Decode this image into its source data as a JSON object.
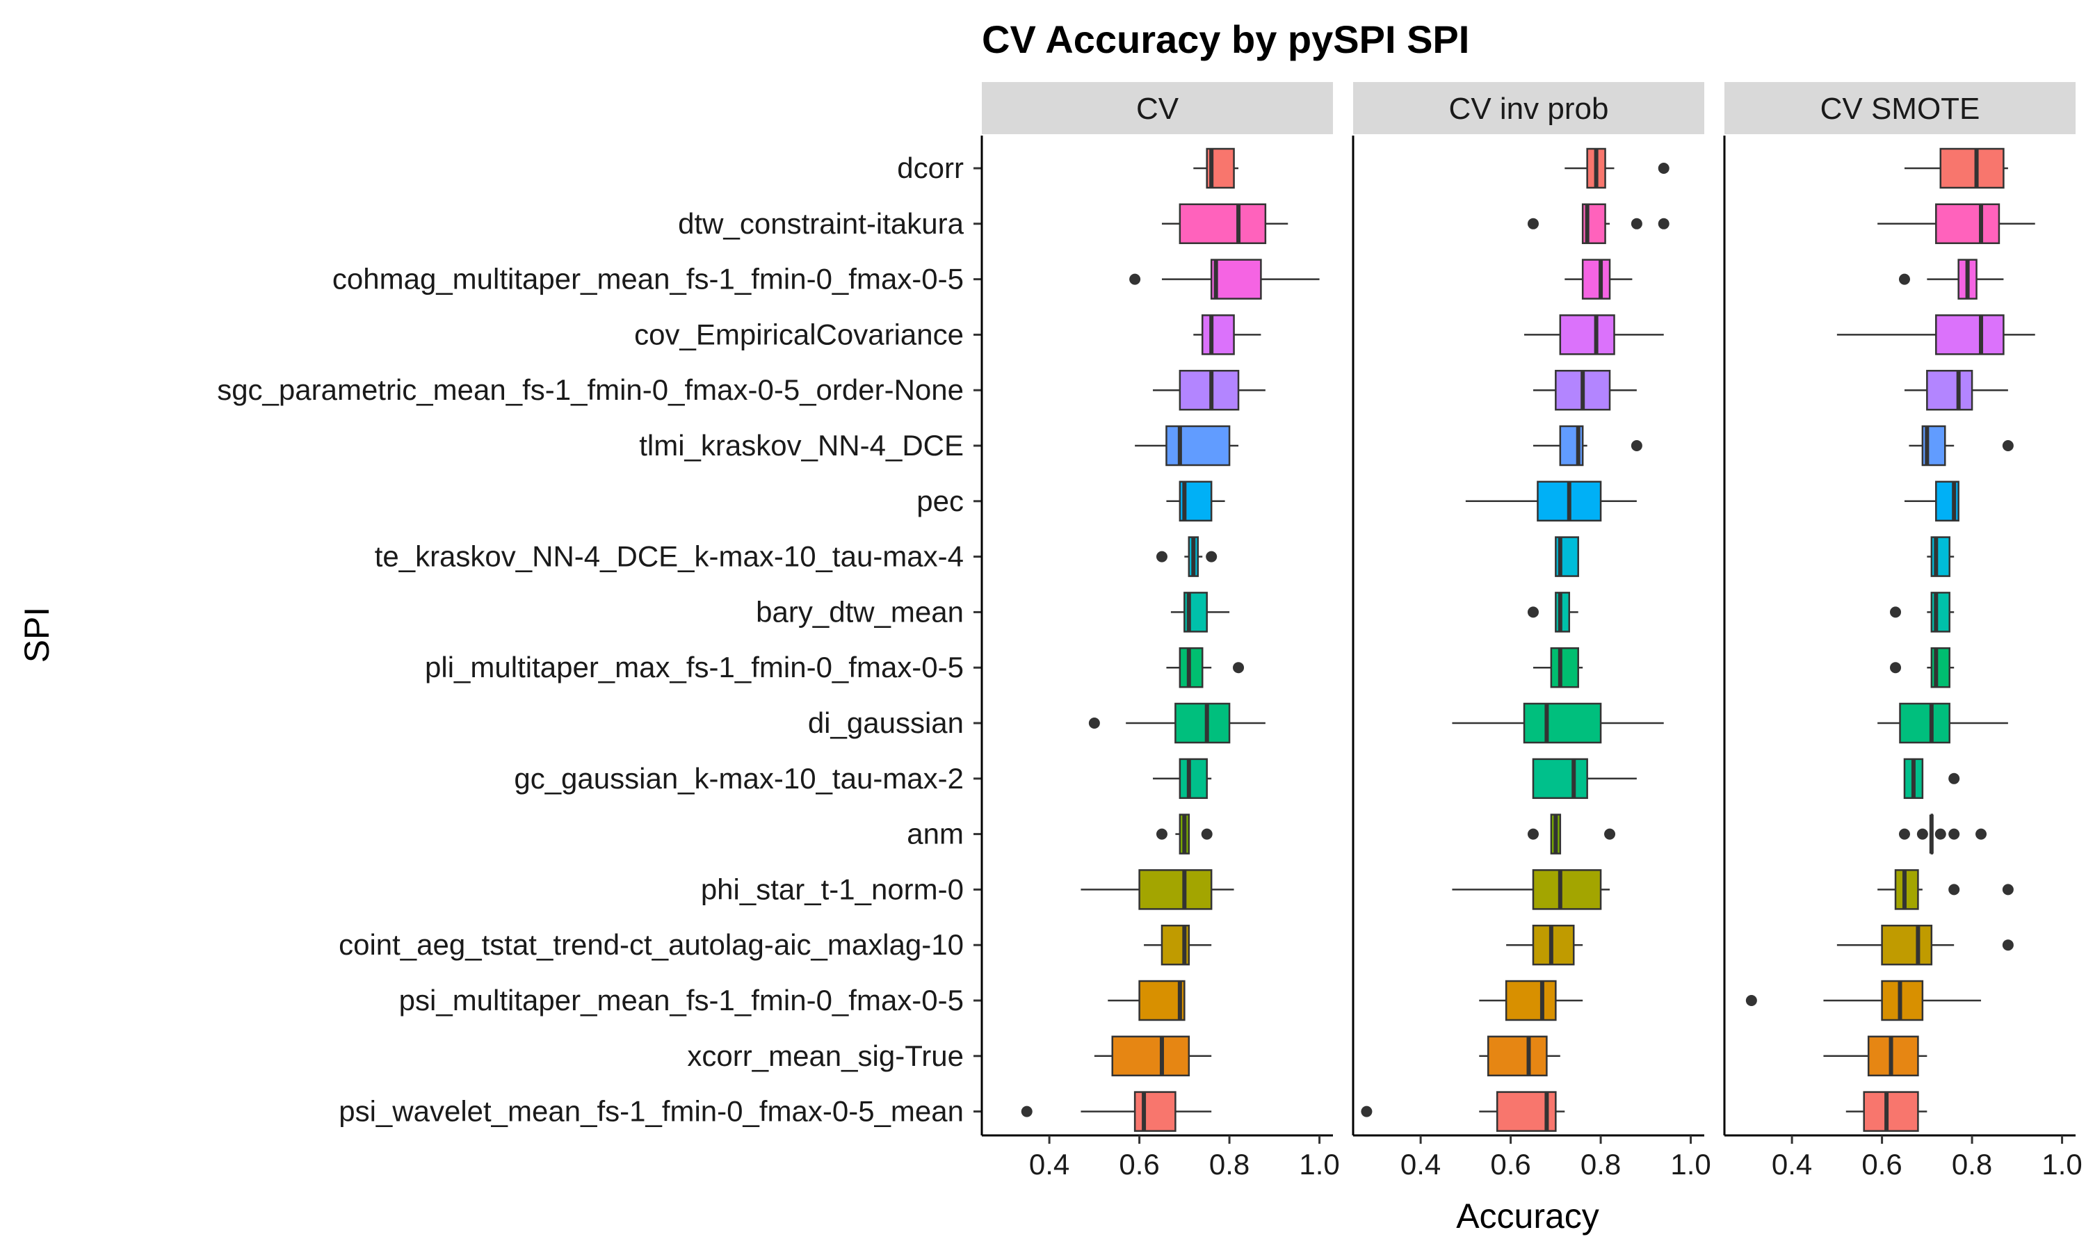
{
  "chart_data": {
    "type": "boxplot",
    "title": "CV Accuracy by pySPI SPI",
    "xlabel": "Accuracy",
    "ylabel": "SPI",
    "xlim": [
      0.25,
      1.03
    ],
    "x_ticks": [
      0.4,
      0.6,
      0.8,
      1.0
    ],
    "x_tick_labels": [
      "0.4",
      "0.6",
      "0.8",
      "1.0"
    ],
    "panels": [
      "CV",
      "CV inv prob",
      "CV SMOTE"
    ],
    "categories": [
      "dcorr",
      "dtw_constraint-itakura",
      "cohmag_multitaper_mean_fs-1_fmin-0_fmax-0-5",
      "cov_EmpiricalCovariance",
      "sgc_parametric_mean_fs-1_fmin-0_fmax-0-5_order-None",
      "tlmi_kraskov_NN-4_DCE",
      "pec",
      "te_kraskov_NN-4_DCE_k-max-10_tau-max-4",
      "bary_dtw_mean",
      "pli_multitaper_max_fs-1_fmin-0_fmax-0-5",
      "di_gaussian",
      "gc_gaussian_k-max-10_tau-max-2",
      "anm",
      "phi_star_t-1_norm-0",
      "coint_aeg_tstat_trend-ct_autolag-aic_maxlag-10",
      "psi_multitaper_mean_fs-1_fmin-0_fmax-0-5",
      "xcorr_mean_sig-True",
      "psi_wavelet_mean_fs-1_fmin-0_fmax-0-5_mean"
    ],
    "colors": [
      "#F8766D",
      "#FF62BC",
      "#F564E3",
      "#DB72FB",
      "#B385FF",
      "#619CFF",
      "#00B0F6",
      "#00BCD8",
      "#00C1AA",
      "#00BE70",
      "#00BF7D",
      "#00C08B",
      "#7CAE00",
      "#A3A500",
      "#C09B00",
      "#D89000",
      "#E68613",
      "#F8766D"
    ],
    "series": [
      {
        "name": "CV",
        "boxes": [
          {
            "whisker_low": 0.72,
            "q1": 0.75,
            "median": 0.76,
            "q3": 0.81,
            "whisker_high": 0.82,
            "outliers": []
          },
          {
            "whisker_low": 0.65,
            "q1": 0.69,
            "median": 0.82,
            "q3": 0.88,
            "whisker_high": 0.93,
            "outliers": []
          },
          {
            "whisker_low": 0.65,
            "q1": 0.76,
            "median": 0.77,
            "q3": 0.87,
            "whisker_high": 1.0,
            "outliers": [
              0.59
            ]
          },
          {
            "whisker_low": 0.72,
            "q1": 0.74,
            "median": 0.76,
            "q3": 0.81,
            "whisker_high": 0.87,
            "outliers": []
          },
          {
            "whisker_low": 0.63,
            "q1": 0.69,
            "median": 0.76,
            "q3": 0.82,
            "whisker_high": 0.88,
            "outliers": []
          },
          {
            "whisker_low": 0.59,
            "q1": 0.66,
            "median": 0.69,
            "q3": 0.8,
            "whisker_high": 0.82,
            "outliers": []
          },
          {
            "whisker_low": 0.66,
            "q1": 0.69,
            "median": 0.7,
            "q3": 0.76,
            "whisker_high": 0.79,
            "outliers": []
          },
          {
            "whisker_low": 0.7,
            "q1": 0.71,
            "median": 0.72,
            "q3": 0.73,
            "whisker_high": 0.74,
            "outliers": [
              0.65,
              0.76
            ]
          },
          {
            "whisker_low": 0.67,
            "q1": 0.7,
            "median": 0.71,
            "q3": 0.75,
            "whisker_high": 0.8,
            "outliers": []
          },
          {
            "whisker_low": 0.66,
            "q1": 0.69,
            "median": 0.71,
            "q3": 0.74,
            "whisker_high": 0.76,
            "outliers": [
              0.82
            ]
          },
          {
            "whisker_low": 0.57,
            "q1": 0.68,
            "median": 0.75,
            "q3": 0.8,
            "whisker_high": 0.88,
            "outliers": [
              0.5
            ]
          },
          {
            "whisker_low": 0.63,
            "q1": 0.69,
            "median": 0.71,
            "q3": 0.75,
            "whisker_high": 0.76,
            "outliers": []
          },
          {
            "whisker_low": 0.68,
            "q1": 0.69,
            "median": 0.7,
            "q3": 0.71,
            "whisker_high": 0.71,
            "outliers": [
              0.65,
              0.75
            ]
          },
          {
            "whisker_low": 0.47,
            "q1": 0.6,
            "median": 0.7,
            "q3": 0.76,
            "whisker_high": 0.81,
            "outliers": []
          },
          {
            "whisker_low": 0.61,
            "q1": 0.65,
            "median": 0.7,
            "q3": 0.71,
            "whisker_high": 0.76,
            "outliers": []
          },
          {
            "whisker_low": 0.53,
            "q1": 0.6,
            "median": 0.69,
            "q3": 0.7,
            "whisker_high": 0.7,
            "outliers": []
          },
          {
            "whisker_low": 0.5,
            "q1": 0.54,
            "median": 0.65,
            "q3": 0.71,
            "whisker_high": 0.76,
            "outliers": []
          },
          {
            "whisker_low": 0.47,
            "q1": 0.59,
            "median": 0.61,
            "q3": 0.68,
            "whisker_high": 0.76,
            "outliers": [
              0.35
            ]
          }
        ]
      },
      {
        "name": "CV inv prob",
        "boxes": [
          {
            "whisker_low": 0.72,
            "q1": 0.77,
            "median": 0.79,
            "q3": 0.81,
            "whisker_high": 0.83,
            "outliers": [
              0.94
            ]
          },
          {
            "whisker_low": 0.76,
            "q1": 0.76,
            "median": 0.77,
            "q3": 0.81,
            "whisker_high": 0.82,
            "outliers": [
              0.65,
              0.88,
              0.94
            ]
          },
          {
            "whisker_low": 0.72,
            "q1": 0.76,
            "median": 0.8,
            "q3": 0.82,
            "whisker_high": 0.87,
            "outliers": []
          },
          {
            "whisker_low": 0.63,
            "q1": 0.71,
            "median": 0.79,
            "q3": 0.83,
            "whisker_high": 0.94,
            "outliers": []
          },
          {
            "whisker_low": 0.65,
            "q1": 0.7,
            "median": 0.76,
            "q3": 0.82,
            "whisker_high": 0.88,
            "outliers": []
          },
          {
            "whisker_low": 0.65,
            "q1": 0.71,
            "median": 0.75,
            "q3": 0.76,
            "whisker_high": 0.77,
            "outliers": [
              0.88
            ]
          },
          {
            "whisker_low": 0.5,
            "q1": 0.66,
            "median": 0.73,
            "q3": 0.8,
            "whisker_high": 0.88,
            "outliers": []
          },
          {
            "whisker_low": 0.7,
            "q1": 0.7,
            "median": 0.71,
            "q3": 0.75,
            "whisker_high": 0.75,
            "outliers": []
          },
          {
            "whisker_low": 0.7,
            "q1": 0.7,
            "median": 0.71,
            "q3": 0.73,
            "whisker_high": 0.75,
            "outliers": [
              0.65
            ]
          },
          {
            "whisker_low": 0.65,
            "q1": 0.69,
            "median": 0.71,
            "q3": 0.75,
            "whisker_high": 0.76,
            "outliers": []
          },
          {
            "whisker_low": 0.47,
            "q1": 0.63,
            "median": 0.68,
            "q3": 0.8,
            "whisker_high": 0.94,
            "outliers": []
          },
          {
            "whisker_low": 0.65,
            "q1": 0.65,
            "median": 0.74,
            "q3": 0.77,
            "whisker_high": 0.88,
            "outliers": []
          },
          {
            "whisker_low": 0.69,
            "q1": 0.69,
            "median": 0.7,
            "q3": 0.71,
            "whisker_high": 0.71,
            "outliers": [
              0.65,
              0.82
            ]
          },
          {
            "whisker_low": 0.47,
            "q1": 0.65,
            "median": 0.71,
            "q3": 0.8,
            "whisker_high": 0.82,
            "outliers": []
          },
          {
            "whisker_low": 0.59,
            "q1": 0.65,
            "median": 0.69,
            "q3": 0.74,
            "whisker_high": 0.76,
            "outliers": []
          },
          {
            "whisker_low": 0.53,
            "q1": 0.59,
            "median": 0.67,
            "q3": 0.7,
            "whisker_high": 0.76,
            "outliers": []
          },
          {
            "whisker_low": 0.53,
            "q1": 0.55,
            "median": 0.64,
            "q3": 0.68,
            "whisker_high": 0.71,
            "outliers": []
          },
          {
            "whisker_low": 0.53,
            "q1": 0.57,
            "median": 0.68,
            "q3": 0.7,
            "whisker_high": 0.72,
            "outliers": [
              0.28
            ]
          }
        ]
      },
      {
        "name": "CV SMOTE",
        "boxes": [
          {
            "whisker_low": 0.65,
            "q1": 0.73,
            "median": 0.81,
            "q3": 0.87,
            "whisker_high": 0.88,
            "outliers": []
          },
          {
            "whisker_low": 0.59,
            "q1": 0.72,
            "median": 0.82,
            "q3": 0.86,
            "whisker_high": 0.94,
            "outliers": []
          },
          {
            "whisker_low": 0.7,
            "q1": 0.77,
            "median": 0.79,
            "q3": 0.81,
            "whisker_high": 0.87,
            "outliers": [
              0.65
            ]
          },
          {
            "whisker_low": 0.5,
            "q1": 0.72,
            "median": 0.82,
            "q3": 0.87,
            "whisker_high": 0.94,
            "outliers": []
          },
          {
            "whisker_low": 0.65,
            "q1": 0.7,
            "median": 0.77,
            "q3": 0.8,
            "whisker_high": 0.88,
            "outliers": []
          },
          {
            "whisker_low": 0.66,
            "q1": 0.69,
            "median": 0.7,
            "q3": 0.74,
            "whisker_high": 0.76,
            "outliers": [
              0.88
            ]
          },
          {
            "whisker_low": 0.65,
            "q1": 0.72,
            "median": 0.76,
            "q3": 0.77,
            "whisker_high": 0.77,
            "outliers": []
          },
          {
            "whisker_low": 0.7,
            "q1": 0.71,
            "median": 0.72,
            "q3": 0.75,
            "whisker_high": 0.76,
            "outliers": []
          },
          {
            "whisker_low": 0.7,
            "q1": 0.71,
            "median": 0.72,
            "q3": 0.75,
            "whisker_high": 0.76,
            "outliers": [
              0.63
            ]
          },
          {
            "whisker_low": 0.7,
            "q1": 0.71,
            "median": 0.72,
            "q3": 0.75,
            "whisker_high": 0.76,
            "outliers": [
              0.63
            ]
          },
          {
            "whisker_low": 0.59,
            "q1": 0.64,
            "median": 0.71,
            "q3": 0.75,
            "whisker_high": 0.88,
            "outliers": []
          },
          {
            "whisker_low": 0.65,
            "q1": 0.65,
            "median": 0.67,
            "q3": 0.69,
            "whisker_high": 0.69,
            "outliers": [
              0.76
            ]
          },
          {
            "whisker_low": 0.71,
            "q1": 0.71,
            "median": 0.71,
            "q3": 0.71,
            "whisker_high": 0.71,
            "outliers": [
              0.65,
              0.69,
              0.73,
              0.76,
              0.82
            ]
          },
          {
            "whisker_low": 0.59,
            "q1": 0.63,
            "median": 0.65,
            "q3": 0.68,
            "whisker_high": 0.69,
            "outliers": [
              0.76,
              0.88
            ]
          },
          {
            "whisker_low": 0.5,
            "q1": 0.6,
            "median": 0.68,
            "q3": 0.71,
            "whisker_high": 0.76,
            "outliers": [
              0.88
            ]
          },
          {
            "whisker_low": 0.47,
            "q1": 0.6,
            "median": 0.64,
            "q3": 0.69,
            "whisker_high": 0.82,
            "outliers": [
              0.31
            ]
          },
          {
            "whisker_low": 0.47,
            "q1": 0.57,
            "median": 0.62,
            "q3": 0.68,
            "whisker_high": 0.7,
            "outliers": []
          },
          {
            "whisker_low": 0.52,
            "q1": 0.56,
            "median": 0.61,
            "q3": 0.68,
            "whisker_high": 0.7,
            "outliers": []
          }
        ]
      }
    ]
  }
}
